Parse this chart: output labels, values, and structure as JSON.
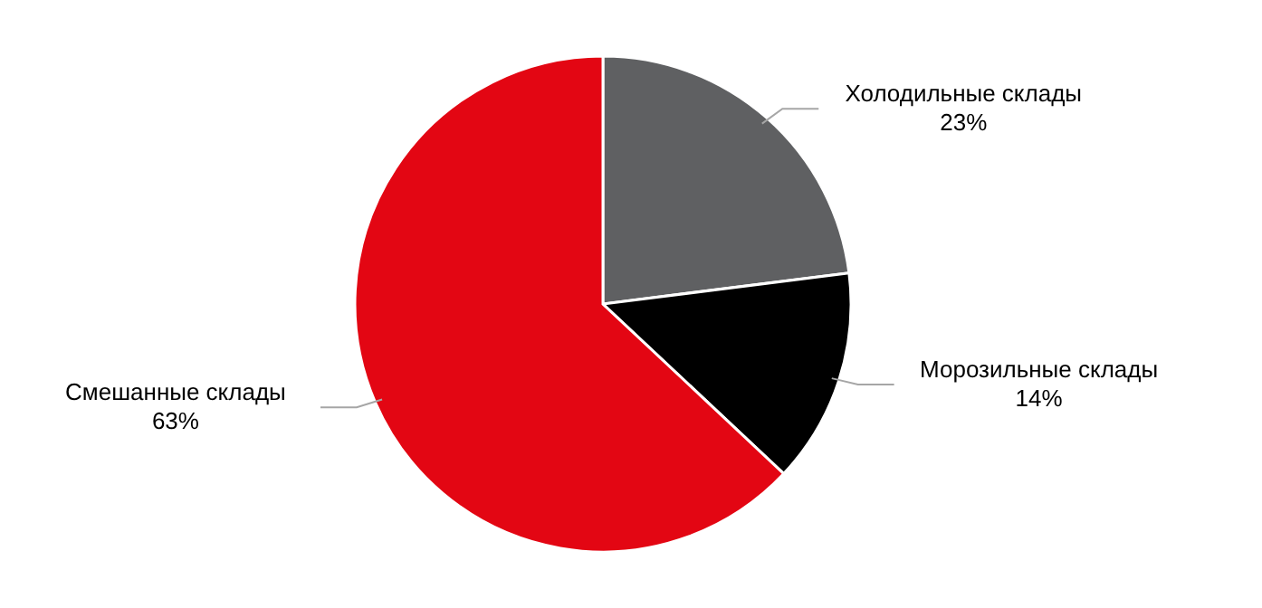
{
  "chart_data": {
    "type": "pie",
    "categories": [
      "Холодильные склады",
      "Морозильные склады",
      "Смешанные склады"
    ],
    "values": [
      23,
      14,
      63
    ],
    "colors": [
      "#5f6062",
      "#000000",
      "#e30613"
    ],
    "value_labels": [
      "23%",
      "14%",
      "63%"
    ]
  }
}
